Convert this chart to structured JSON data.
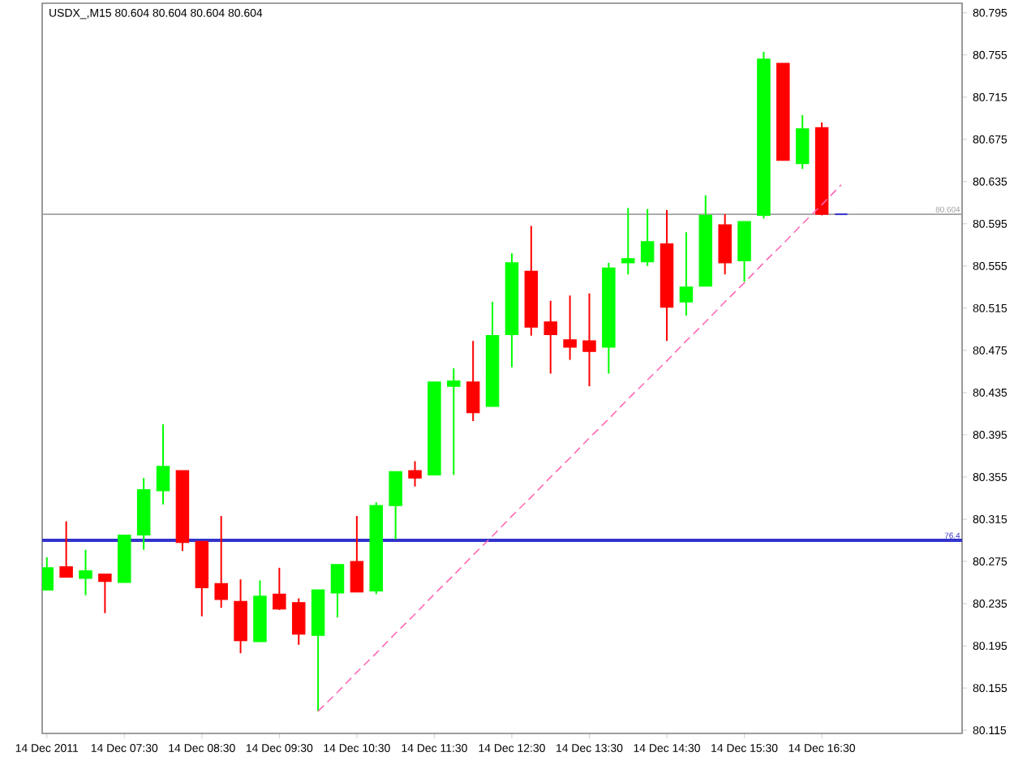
{
  "chart_data": {
    "type": "candlestick",
    "title": "USDX_,M15 80.604 80.604 80.604 80.604",
    "categories": [
      "14 Dec 2011",
      null,
      null,
      null,
      "14 Dec 07:30",
      null,
      null,
      null,
      "14 Dec 08:30",
      null,
      null,
      null,
      "14 Dec 09:30",
      null,
      null,
      null,
      "14 Dec 10:30",
      null,
      null,
      null,
      "14 Dec 11:30",
      null,
      null,
      null,
      "14 Dec 12:30",
      null,
      null,
      null,
      "14 Dec 13:30",
      null,
      null,
      null,
      "14 Dec 14:30",
      null,
      null,
      null,
      "14 Dec 15:30",
      null,
      null,
      null,
      "14 Dec 16:30",
      null
    ],
    "ohlc": [
      [
        80.248,
        80.279,
        80.248,
        80.269
      ],
      [
        80.27,
        80.313,
        80.26,
        80.26
      ],
      [
        80.259,
        80.286,
        80.243,
        80.266
      ],
      [
        80.263,
        80.263,
        80.226,
        80.256
      ],
      [
        80.255,
        80.3,
        80.255,
        80.3
      ],
      [
        80.3,
        80.354,
        80.286,
        80.343
      ],
      [
        80.342,
        80.405,
        80.329,
        80.365
      ],
      [
        80.361,
        80.361,
        80.285,
        80.293
      ],
      [
        80.294,
        80.294,
        80.223,
        80.25
      ],
      [
        80.254,
        80.318,
        80.231,
        80.239
      ],
      [
        80.237,
        80.258,
        80.188,
        80.2
      ],
      [
        80.199,
        80.257,
        80.199,
        80.242
      ],
      [
        80.244,
        80.269,
        80.229,
        80.23
      ],
      [
        80.236,
        80.24,
        80.196,
        80.206
      ],
      [
        80.205,
        80.248,
        80.133,
        80.248
      ],
      [
        80.245,
        80.272,
        80.222,
        80.272
      ],
      [
        80.275,
        80.318,
        80.246,
        80.246
      ],
      [
        80.247,
        80.331,
        80.244,
        80.328
      ],
      [
        80.328,
        80.36,
        80.296,
        80.36
      ],
      [
        80.361,
        80.37,
        80.346,
        80.354
      ],
      [
        80.357,
        80.445,
        80.357,
        80.445
      ],
      [
        80.441,
        80.458,
        80.357,
        80.446
      ],
      [
        80.445,
        80.484,
        80.408,
        80.416
      ],
      [
        80.422,
        80.521,
        80.422,
        80.489
      ],
      [
        80.49,
        80.567,
        80.459,
        80.558
      ],
      [
        80.55,
        80.593,
        80.489,
        80.497
      ],
      [
        80.502,
        80.522,
        80.453,
        80.49
      ],
      [
        80.485,
        80.527,
        80.466,
        80.478
      ],
      [
        80.484,
        80.529,
        80.441,
        80.474
      ],
      [
        80.478,
        80.558,
        80.453,
        80.553
      ],
      [
        80.558,
        80.61,
        80.547,
        80.562
      ],
      [
        80.559,
        80.609,
        80.555,
        80.578
      ],
      [
        80.576,
        80.608,
        80.484,
        80.516
      ],
      [
        80.521,
        80.587,
        80.508,
        80.535
      ],
      [
        80.536,
        80.622,
        80.536,
        80.603
      ],
      [
        80.594,
        80.604,
        80.547,
        80.558
      ],
      [
        80.56,
        80.597,
        80.54,
        80.597
      ],
      [
        80.603,
        80.758,
        80.6,
        80.751
      ],
      [
        80.747,
        80.747,
        80.655,
        80.655
      ],
      [
        80.652,
        80.698,
        80.647,
        80.685
      ],
      [
        80.686,
        80.691,
        80.603,
        80.604
      ],
      [
        80.604,
        80.604,
        80.604,
        80.604
      ]
    ],
    "colors": [
      "#00ff00",
      "#ff0000",
      "#00ff00",
      "#ff0000",
      "#00ff00",
      "#00ff00",
      "#00ff00",
      "#ff0000",
      "#ff0000",
      "#ff0000",
      "#ff0000",
      "#00ff00",
      "#ff0000",
      "#ff0000",
      "#00ff00",
      "#00ff00",
      "#ff0000",
      "#00ff00",
      "#00ff00",
      "#ff0000",
      "#00ff00",
      "#00ff00",
      "#ff0000",
      "#00ff00",
      "#00ff00",
      "#ff0000",
      "#ff0000",
      "#ff0000",
      "#ff0000",
      "#00ff00",
      "#00ff00",
      "#00ff00",
      "#ff0000",
      "#00ff00",
      "#00ff00",
      "#ff0000",
      "#00ff00",
      "#00ff00",
      "#ff0000",
      "#00ff00",
      "#ff0000",
      "#3333cc"
    ],
    "series": [
      {
        "type": "line",
        "color": "#ff69b4",
        "line_style": "dashed",
        "values": [
          null,
          null,
          null,
          null,
          null,
          null,
          null,
          null,
          null,
          null,
          null,
          null,
          null,
          null,
          80.133,
          80.151,
          80.17,
          80.188,
          80.207,
          80.225,
          80.244,
          80.262,
          80.281,
          80.299,
          80.318,
          80.336,
          80.355,
          80.373,
          80.392,
          80.41,
          80.429,
          80.447,
          80.465,
          80.484,
          80.502,
          80.521,
          80.539,
          80.558,
          80.576,
          80.595,
          80.613,
          80.632
        ]
      }
    ],
    "ylim": [
      80.112,
      80.804
    ],
    "yticks": [
      80.115,
      80.155,
      80.195,
      80.235,
      80.275,
      80.315,
      80.355,
      80.395,
      80.435,
      80.475,
      80.515,
      80.555,
      80.595,
      80.635,
      80.675,
      80.715,
      80.755,
      80.795
    ],
    "ref_lines": [
      {
        "axis": "y",
        "value": 80.604,
        "label": "80.604",
        "color": "#a0a0a0"
      },
      {
        "axis": "y",
        "value": 80.295,
        "color": "#3333cc"
      }
    ],
    "annotations": [
      "76.4"
    ]
  }
}
